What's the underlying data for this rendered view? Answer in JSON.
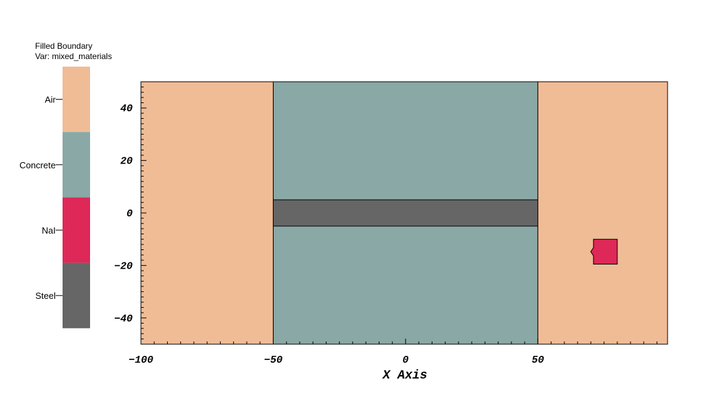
{
  "legend": {
    "title": "Filled Boundary",
    "var_label": "Var: mixed_materials",
    "materials": [
      {
        "name": "Air",
        "color": "#f0bc96"
      },
      {
        "name": "Concrete",
        "color": "#89a8a6"
      },
      {
        "name": "NaI",
        "color": "#de2858"
      },
      {
        "name": "Steel",
        "color": "#666666"
      }
    ]
  },
  "chart_data": {
    "type": "heatmap",
    "title": "",
    "xlabel": "X Axis",
    "ylabel": "",
    "xlim": [
      -100,
      99
    ],
    "ylim": [
      -50,
      50
    ],
    "x_ticks": [
      -100,
      -50,
      0,
      50
    ],
    "y_ticks": [
      -40,
      -20,
      0,
      20,
      40
    ],
    "regions": [
      {
        "material": "Air",
        "x": [
          -100,
          -50
        ],
        "y": [
          -50,
          50
        ]
      },
      {
        "material": "Concrete",
        "x": [
          -50,
          50
        ],
        "y": [
          -50,
          50
        ]
      },
      {
        "material": "Steel",
        "x": [
          -50,
          50
        ],
        "y": [
          -5,
          5
        ]
      },
      {
        "material": "Air",
        "x": [
          50,
          99
        ],
        "y": [
          -50,
          50
        ]
      },
      {
        "material": "NaI",
        "x": [
          71,
          80
        ],
        "y": [
          -19.5,
          -10
        ]
      }
    ]
  }
}
